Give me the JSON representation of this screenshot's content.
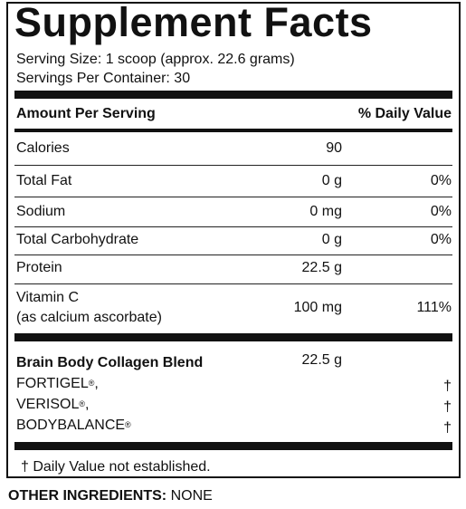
{
  "title": "Supplement Facts",
  "serving_size": "Serving Size: 1 scoop (approx. 22.6 grams)",
  "servings_per_container": "Servings Per Container: 30",
  "header": {
    "amount": "Amount Per Serving",
    "dv": "% Daily Value"
  },
  "nutrients": [
    {
      "name": "Calories",
      "amount": "90",
      "dv": ""
    },
    {
      "name": "Total Fat",
      "amount": "0 g",
      "dv": "0%"
    },
    {
      "name": "Sodium",
      "amount": "0 mg",
      "dv": "0%"
    },
    {
      "name": "Total Carbohydrate",
      "amount": "0 g",
      "dv": "0%"
    },
    {
      "name": "Protein",
      "amount": "22.5 g",
      "dv": ""
    },
    {
      "name": "Vitamin C",
      "name2": "(as calcium ascorbate)",
      "amount": "100 mg",
      "dv": "111%"
    }
  ],
  "blend": {
    "name": "Brain Body Collagen Blend",
    "amount": "22.5 g",
    "items": [
      {
        "name": "FORTIGEL",
        "mark": "®",
        "suffix": ",",
        "dv": "†"
      },
      {
        "name": "VERISOL",
        "mark": "®",
        "suffix": ",",
        "dv": "†"
      },
      {
        "name": "BODYBALANCE",
        "mark": "®",
        "suffix": "",
        "dv": "†"
      }
    ]
  },
  "footnote": "† Daily Value not established.",
  "other_ingredients": {
    "label": "OTHER INGREDIENTS:",
    "value": " NONE"
  }
}
